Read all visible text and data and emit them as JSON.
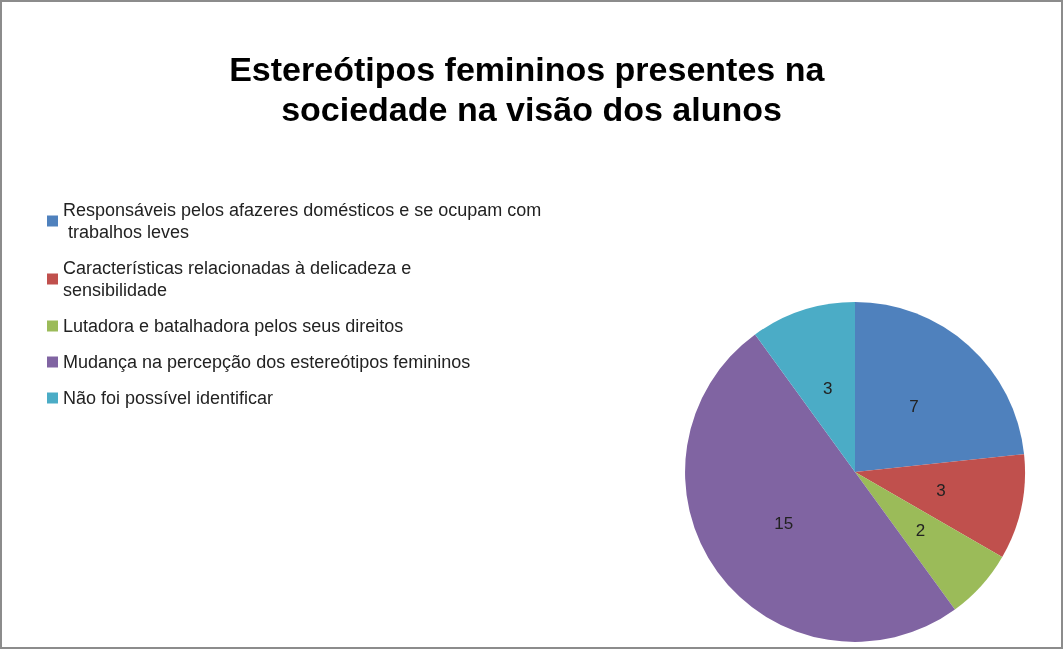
{
  "chart_data": {
    "type": "pie",
    "title": "Estereótipos femininos presentes na sociedade na visão dos alunos",
    "categories": [
      "Responsáveis pelos afazeres domésticos e se ocupam com trabalhos leves",
      "Características relacionadas à delicadeza e sensibilidade",
      "Lutadora e batalhadora pelos seus direitos",
      "Mudança na percepção dos estereótipos femininos",
      "Não foi possível identificar"
    ],
    "values": [
      7,
      3,
      2,
      15,
      3
    ],
    "colors": [
      "#4f81bd",
      "#c0504d",
      "#9bbb59",
      "#8064a2",
      "#4bacc6"
    ],
    "data_labels": true,
    "legend": "top left"
  }
}
